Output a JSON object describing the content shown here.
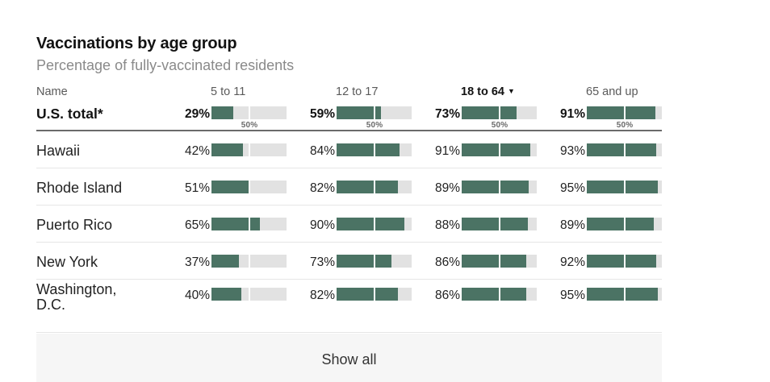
{
  "title": "Vaccinations by age group",
  "subtitle": "Percentage of fully-vaccinated residents",
  "columns": {
    "name": "Name",
    "groups": [
      "5 to 11",
      "12 to 17",
      "18 to 64",
      "65 and up"
    ],
    "sorted_index": 2,
    "sort_icon": "sort-down-triangle-icon"
  },
  "total_row": {
    "name": "U.S. total*",
    "labels": [
      "29%",
      "59%",
      "73%",
      "91%"
    ],
    "values": [
      29,
      59,
      73,
      91
    ],
    "reference_label": "50%"
  },
  "rows": [
    {
      "name": "Hawaii",
      "labels": [
        "42%",
        "84%",
        "91%",
        "93%"
      ],
      "values": [
        42,
        84,
        91,
        93
      ]
    },
    {
      "name": "Rhode Island",
      "labels": [
        "51%",
        "82%",
        "89%",
        "95%"
      ],
      "values": [
        51,
        82,
        89,
        95
      ]
    },
    {
      "name": "Puerto Rico",
      "labels": [
        "65%",
        "90%",
        "88%",
        "89%"
      ],
      "values": [
        65,
        90,
        88,
        89
      ]
    },
    {
      "name": "New York",
      "labels": [
        "37%",
        "73%",
        "86%",
        "92%"
      ],
      "values": [
        37,
        73,
        86,
        92
      ]
    },
    {
      "name": "Washington, D.C.",
      "labels": [
        "40%",
        "82%",
        "86%",
        "95%"
      ],
      "values": [
        40,
        82,
        86,
        95
      ]
    }
  ],
  "show_all_label": "Show all",
  "colors": {
    "bar_fill": "#4b7364",
    "bar_track": "#e2e2e2",
    "text": "#121212",
    "subtitle": "#8a8a8a"
  }
}
